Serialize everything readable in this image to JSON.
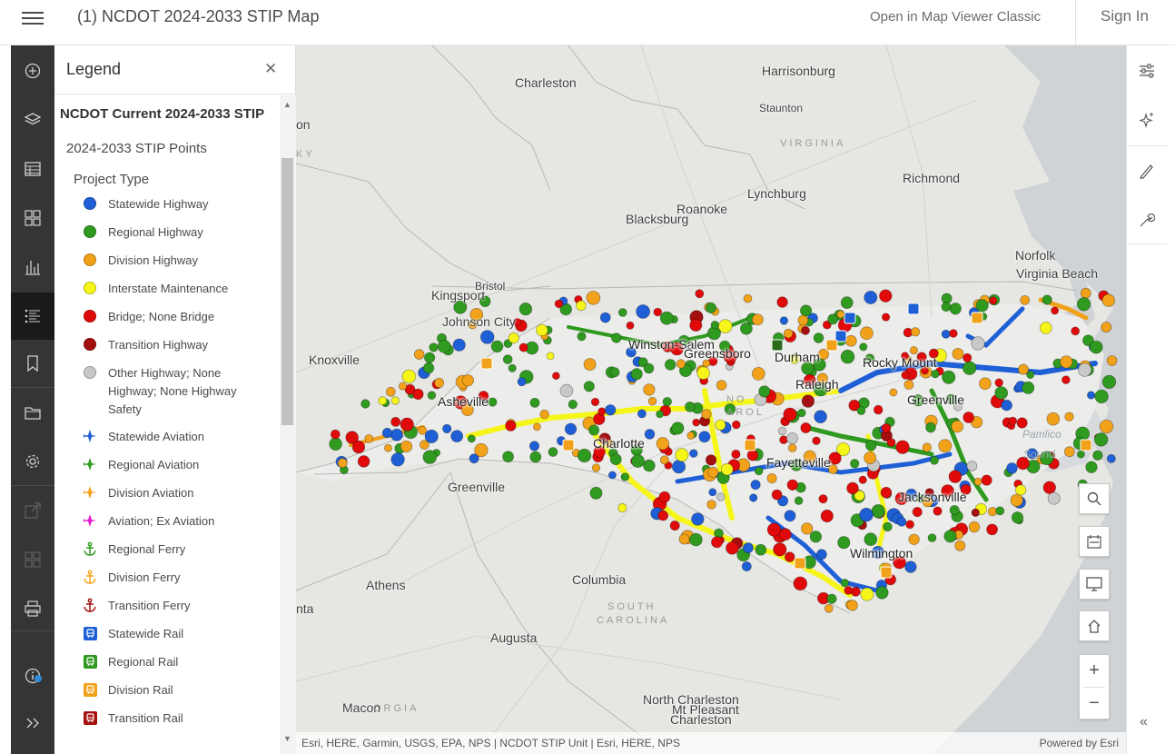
{
  "header": {
    "title": "(1) NCDOT 2024-2033 STIP Map",
    "classic_link": "Open in Map Viewer Classic",
    "sign_in": "Sign In"
  },
  "toolbar": {
    "items": [
      {
        "icon": "add-icon",
        "label": "Add"
      },
      {
        "icon": "layers-icon",
        "label": "Layers"
      },
      {
        "icon": "table-icon",
        "label": "Tables"
      },
      {
        "icon": "basemap-icon",
        "label": "Basemap"
      },
      {
        "icon": "charts-icon",
        "label": "Charts"
      },
      {
        "icon": "legend-icon",
        "label": "Legend"
      },
      {
        "icon": "bookmark-icon",
        "label": "Bookmarks"
      },
      {
        "icon": "folder-icon",
        "label": "Open"
      },
      {
        "icon": "gear-icon",
        "label": "Settings"
      },
      {
        "icon": "share-icon",
        "label": "Share"
      },
      {
        "icon": "apps-icon",
        "label": "Create app"
      },
      {
        "icon": "print-icon",
        "label": "Print"
      },
      {
        "icon": "info-icon",
        "label": "Info"
      },
      {
        "icon": "expand-icon",
        "label": "Expand"
      }
    ]
  },
  "legend": {
    "title": "Legend",
    "layer_title": "NCDOT Current 2024-2033 STIP",
    "sublayer": "2024-2033 STIP Points",
    "field": "Project Type",
    "items": [
      {
        "label": "Statewide Highway",
        "kind": "dot",
        "color": "#1f5fd6"
      },
      {
        "label": "Regional Highway",
        "kind": "dot",
        "color": "#2f9a1f"
      },
      {
        "label": "Division Highway",
        "kind": "dot",
        "color": "#f2a21a"
      },
      {
        "label": "Interstate Maintenance",
        "kind": "dot",
        "color": "#f5f51a"
      },
      {
        "label": "Bridge; None Bridge",
        "kind": "dot",
        "color": "#e00a0a"
      },
      {
        "label": "Transition Highway",
        "kind": "dot",
        "color": "#a50f0f"
      },
      {
        "label": "Other Highway; None Highway; None Highway Safety",
        "kind": "dot",
        "color": "#c8c8c8"
      },
      {
        "label": "Statewide Aviation",
        "kind": "plane",
        "color": "#1f5fd6"
      },
      {
        "label": "Regional Aviation",
        "kind": "plane",
        "color": "#2f9a1f"
      },
      {
        "label": "Division Aviation",
        "kind": "plane",
        "color": "#f2a21a"
      },
      {
        "label": "Aviation; Ex Aviation",
        "kind": "plane",
        "color": "#e61ad0"
      },
      {
        "label": "Regional Ferry",
        "kind": "anchor",
        "color": "#2f9a1f"
      },
      {
        "label": "Division Ferry",
        "kind": "anchor",
        "color": "#f2a21a"
      },
      {
        "label": "Transition Ferry",
        "kind": "anchor",
        "color": "#a50f0f"
      },
      {
        "label": "Statewide Rail",
        "kind": "rail",
        "color": "#1f5fd6"
      },
      {
        "label": "Regional Rail",
        "kind": "rail",
        "color": "#2f9a1f"
      },
      {
        "label": "Division Rail",
        "kind": "rail",
        "color": "#f2a21a"
      },
      {
        "label": "Transition Rail",
        "kind": "rail",
        "color": "#a50f0f"
      }
    ]
  },
  "map": {
    "places": [
      {
        "name": "Charleston",
        "cls": ""
      },
      {
        "name": "Harrisonburg",
        "cls": ""
      },
      {
        "name": "Staunton",
        "cls": "small"
      },
      {
        "name": "VIRGINIA",
        "cls": "region"
      },
      {
        "name": "Richmond",
        "cls": ""
      },
      {
        "name": "Lynchburg",
        "cls": ""
      },
      {
        "name": "Roanoke",
        "cls": ""
      },
      {
        "name": "Blacksburg",
        "cls": ""
      },
      {
        "name": "Norfolk",
        "cls": ""
      },
      {
        "name": "Virginia Beach",
        "cls": ""
      },
      {
        "name": "on",
        "cls": ""
      },
      {
        "name": "KY",
        "cls": "region"
      },
      {
        "name": "Bristol",
        "cls": "small"
      },
      {
        "name": "Kingsport",
        "cls": ""
      },
      {
        "name": "Johnson City",
        "cls": ""
      },
      {
        "name": "Knoxville",
        "cls": ""
      },
      {
        "name": "Winston-Salem",
        "cls": "city-on"
      },
      {
        "name": "Greensboro",
        "cls": "city-on"
      },
      {
        "name": "Durham",
        "cls": "city-on"
      },
      {
        "name": "Rocky Mount",
        "cls": "city-on"
      },
      {
        "name": "Raleigh",
        "cls": "city-on"
      },
      {
        "name": "Greenville",
        "cls": "city-on"
      },
      {
        "name": "Asheville",
        "cls": "city-on"
      },
      {
        "name": "NO",
        "cls": "region"
      },
      {
        "name": "AROL",
        "cls": "region"
      },
      {
        "name": "Charlotte",
        "cls": "city-on"
      },
      {
        "name": "Fayetteville",
        "cls": "city-on"
      },
      {
        "name": "Pamlico",
        "cls": "water"
      },
      {
        "name": "Sound",
        "cls": "water"
      },
      {
        "name": "Greenville",
        "cls": ""
      },
      {
        "name": "Jacksonville",
        "cls": "city-on"
      },
      {
        "name": "Wilmington",
        "cls": "city-on"
      },
      {
        "name": "Athens",
        "cls": ""
      },
      {
        "name": "Columbia",
        "cls": ""
      },
      {
        "name": "SOUTH",
        "cls": "region"
      },
      {
        "name": "CAROLINA",
        "cls": "region"
      },
      {
        "name": "nta",
        "cls": ""
      },
      {
        "name": "Augusta",
        "cls": ""
      },
      {
        "name": "Macon",
        "cls": ""
      },
      {
        "name": "ORGIA",
        "cls": "region"
      },
      {
        "name": "North Charleston",
        "cls": ""
      },
      {
        "name": "Mt Pleasant",
        "cls": ""
      },
      {
        "name": "Charleston",
        "cls": ""
      }
    ],
    "tools": [
      {
        "icon": "search-icon",
        "label": "Search"
      },
      {
        "icon": "map-area-icon",
        "label": "Measure"
      },
      {
        "icon": "monitor-icon",
        "label": "Full screen"
      },
      {
        "icon": "home-icon",
        "label": "Default extent"
      }
    ],
    "zoom_in": "+",
    "zoom_out": "−",
    "attribution": "Esri, HERE, Garmin, USGS, EPA, NPS | NCDOT STIP Unit | Esri, HERE, NPS",
    "powered_by": "Powered by Esri"
  },
  "right_toolbar": {
    "items": [
      {
        "icon": "sliders-icon",
        "label": "Properties"
      },
      {
        "icon": "sparkle-icon",
        "label": "Effects"
      },
      {
        "icon": "pen-icon",
        "label": "Sketch"
      },
      {
        "icon": "wrench-icon",
        "label": "Configure"
      }
    ],
    "collapse": "«"
  }
}
